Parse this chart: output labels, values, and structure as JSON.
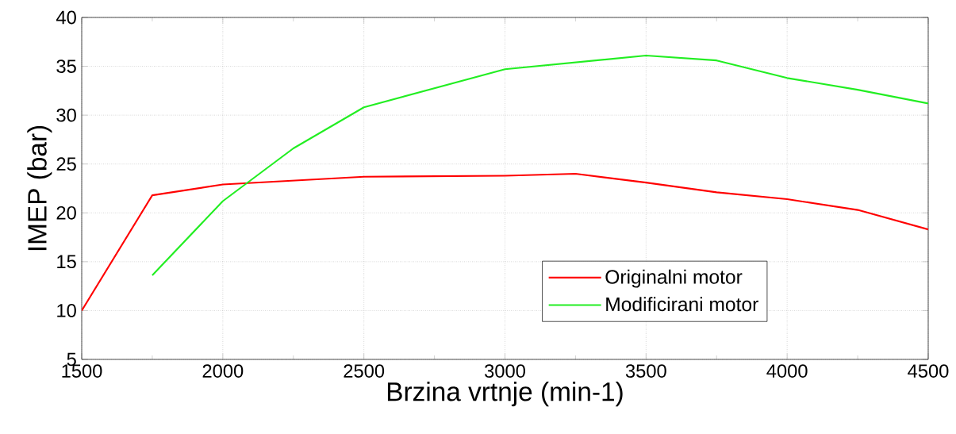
{
  "chart_data": {
    "type": "line",
    "xlabel": "Brzina vrtnje (min-1)",
    "ylabel": "IMEP (bar)",
    "xlim": [
      1500,
      4500
    ],
    "ylim": [
      5,
      40
    ],
    "xticks": [
      1500,
      2000,
      2500,
      3000,
      3500,
      4000,
      4500
    ],
    "yticks": [
      5,
      10,
      15,
      20,
      25,
      30,
      35,
      40
    ],
    "grid": true,
    "legend": "bottom right",
    "marker": "none",
    "line_style": "solid",
    "series": [
      {
        "name": "Originalni motor",
        "color": "#ff0000",
        "x": [
          1500,
          1750,
          2000,
          2500,
          3000,
          3250,
          3500,
          3750,
          4000,
          4250,
          4500
        ],
        "values": [
          10.0,
          21.8,
          22.9,
          23.7,
          23.8,
          24.0,
          23.1,
          22.1,
          21.4,
          20.3,
          18.3
        ]
      },
      {
        "name": "Modificirani motor",
        "color": "#22ee22",
        "x": [
          1750,
          2000,
          2250,
          2500,
          3000,
          3250,
          3500,
          3750,
          4000,
          4250,
          4500
        ],
        "values": [
          13.6,
          21.2,
          26.6,
          30.8,
          34.7,
          35.4,
          36.1,
          35.6,
          33.8,
          32.6,
          31.2
        ]
      }
    ]
  }
}
